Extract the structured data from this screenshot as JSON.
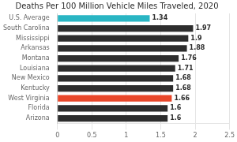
{
  "chart_data": {
    "type": "bar",
    "orientation": "horizontal",
    "title": "Deaths Per 100 Million Vehicle Miles Traveled, 2020",
    "categories": [
      "Arizona",
      "Florida",
      "West Virginia",
      "Kentucky",
      "New Mexico",
      "Louisiana",
      "Montana",
      "Arkansas",
      "Mississippi",
      "South Carolina",
      "U.S. Average"
    ],
    "values": [
      1.6,
      1.6,
      1.66,
      1.68,
      1.68,
      1.71,
      1.76,
      1.88,
      1.9,
      1.97,
      1.34
    ],
    "colors": [
      "#2d2d2d",
      "#2d2d2d",
      "#e8472a",
      "#2d2d2d",
      "#2d2d2d",
      "#2d2d2d",
      "#2d2d2d",
      "#2d2d2d",
      "#2d2d2d",
      "#2d2d2d",
      "#29b5c3"
    ],
    "xlim": [
      0,
      2.5
    ],
    "xticks": [
      0,
      0.5,
      1,
      1.5,
      2,
      2.5
    ],
    "grid": true,
    "data_labels": true
  }
}
